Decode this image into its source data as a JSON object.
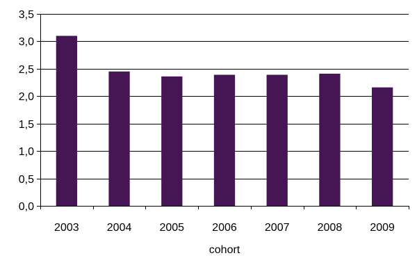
{
  "chart_data": {
    "type": "bar",
    "categories": [
      "2003",
      "2004",
      "2005",
      "2006",
      "2007",
      "2008",
      "2009"
    ],
    "values": [
      3.1,
      2.45,
      2.36,
      2.39,
      2.39,
      2.41,
      2.16
    ],
    "title": "",
    "xlabel": "cohort",
    "ylabel": "",
    "ylim": [
      0,
      3.5
    ],
    "yticks": [
      "0,0",
      "0,5",
      "1,0",
      "1,5",
      "2,0",
      "2,5",
      "3,0",
      "3,5"
    ],
    "grid": true,
    "legend": "none",
    "bar_color": "#461654",
    "grid_color": "#000000"
  }
}
